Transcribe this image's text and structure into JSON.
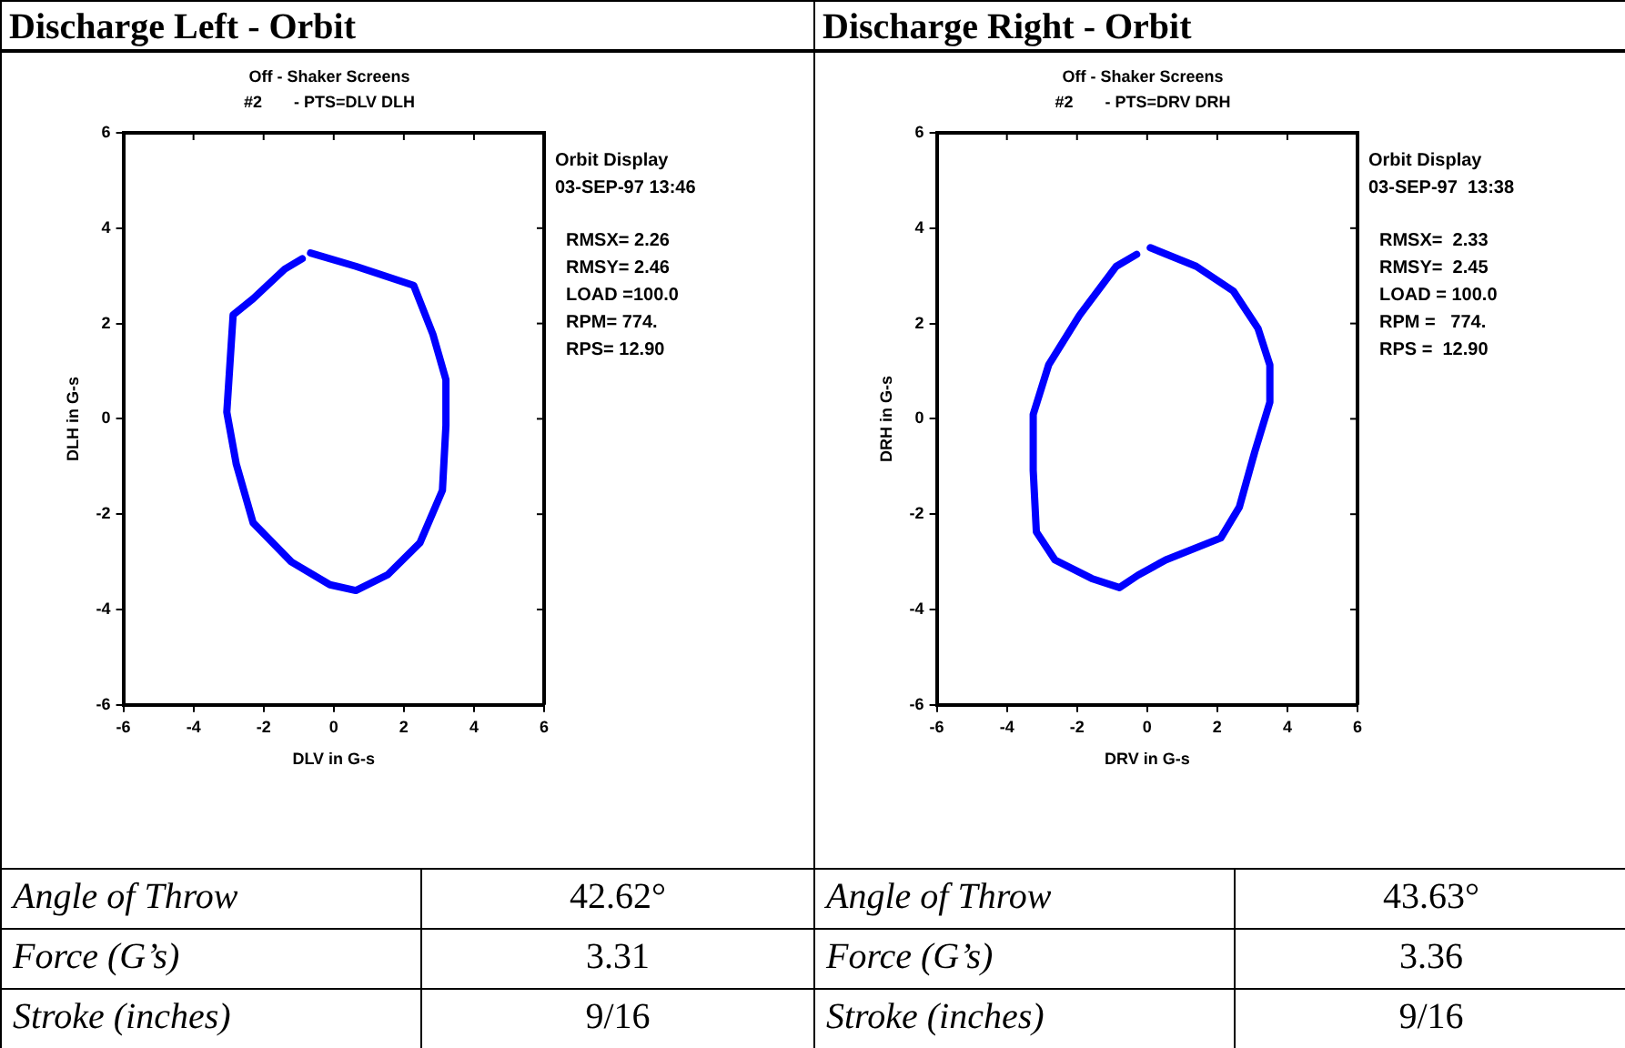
{
  "chart_data": [
    {
      "type": "line",
      "title": "Discharge Left - Orbit",
      "subtitle": "Off - Shaker Screens\n#2       - PTS=DLV DLH",
      "xlabel": "DLV in G-s",
      "ylabel": "DLH in G-s",
      "xlim": [
        -6,
        6
      ],
      "ylim": [
        -6,
        6
      ],
      "xticks": [
        -6,
        -4,
        -2,
        0,
        2,
        4,
        6
      ],
      "yticks": [
        -6,
        -4,
        -2,
        0,
        2,
        4,
        6
      ],
      "marker": "none",
      "legend": false,
      "grid": false,
      "annotations": [
        "Orbit Display",
        "03-SEP-97 13:46",
        "RMSX= 2.26",
        "RMSY= 2.46",
        "LOAD =100.0",
        "RPM= 774.",
        "RPS= 12.90"
      ],
      "x": [
        -0.66,
        0.63,
        2.28,
        2.83,
        3.2,
        3.2,
        3.1,
        2.46,
        1.54,
        0.63,
        -0.11,
        -1.21,
        -2.3,
        -2.78,
        -3.05,
        -2.87,
        -2.3,
        -1.4,
        -0.9
      ],
      "series": [
        {
          "color": "#0000ff",
          "values": [
            3.48,
            3.2,
            2.8,
            1.77,
            0.82,
            -0.14,
            -1.5,
            -2.6,
            -3.27,
            -3.6,
            -3.48,
            -3.0,
            -2.18,
            -0.95,
            0.14,
            2.18,
            2.52,
            3.14,
            3.36
          ]
        }
      ]
    },
    {
      "type": "line",
      "title": "Discharge Right - Orbit",
      "subtitle": "Off - Shaker Screens\n#2       - PTS=DRV DRH",
      "xlabel": "DRV in G-s",
      "ylabel": "DRH in G-s",
      "xlim": [
        -6,
        6
      ],
      "ylim": [
        -6,
        6
      ],
      "xticks": [
        -6,
        -4,
        -2,
        0,
        2,
        4,
        6
      ],
      "yticks": [
        -6,
        -4,
        -2,
        0,
        2,
        4,
        6
      ],
      "marker": "none",
      "legend": false,
      "grid": false,
      "annotations": [
        "Orbit Display",
        "03-SEP-97  13:38",
        "RMSX=  2.33",
        "RMSY=  2.45",
        "LOAD = 100.0",
        "RPM =   774.",
        "RPS =  12.90"
      ],
      "x": [
        0.09,
        1.4,
        2.46,
        3.16,
        3.5,
        3.5,
        3.07,
        2.63,
        2.1,
        0.53,
        -0.26,
        -0.79,
        -1.58,
        -2.63,
        -3.16,
        -3.25,
        -3.25,
        -2.81,
        -1.93,
        -0.88,
        -0.3
      ],
      "series": [
        {
          "color": "#0000ff",
          "values": [
            3.59,
            3.2,
            2.68,
            1.9,
            1.13,
            0.35,
            -0.69,
            -1.85,
            -2.5,
            -2.96,
            -3.28,
            -3.54,
            -3.35,
            -2.96,
            -2.37,
            -1.08,
            0.09,
            1.13,
            2.17,
            3.2,
            3.45
          ]
        }
      ]
    },
    {
      "type": "other",
      "annotations": [
        "Angle of Throw",
        "42.62°",
        "Force (G’s)",
        "3.31",
        "Stroke (inches)",
        "9/16"
      ]
    },
    {
      "type": "other",
      "annotations": [
        "Angle of Throw",
        "43.63°",
        "Force (G’s)",
        "3.36",
        "Stroke (inches)",
        "9/16"
      ]
    }
  ]
}
